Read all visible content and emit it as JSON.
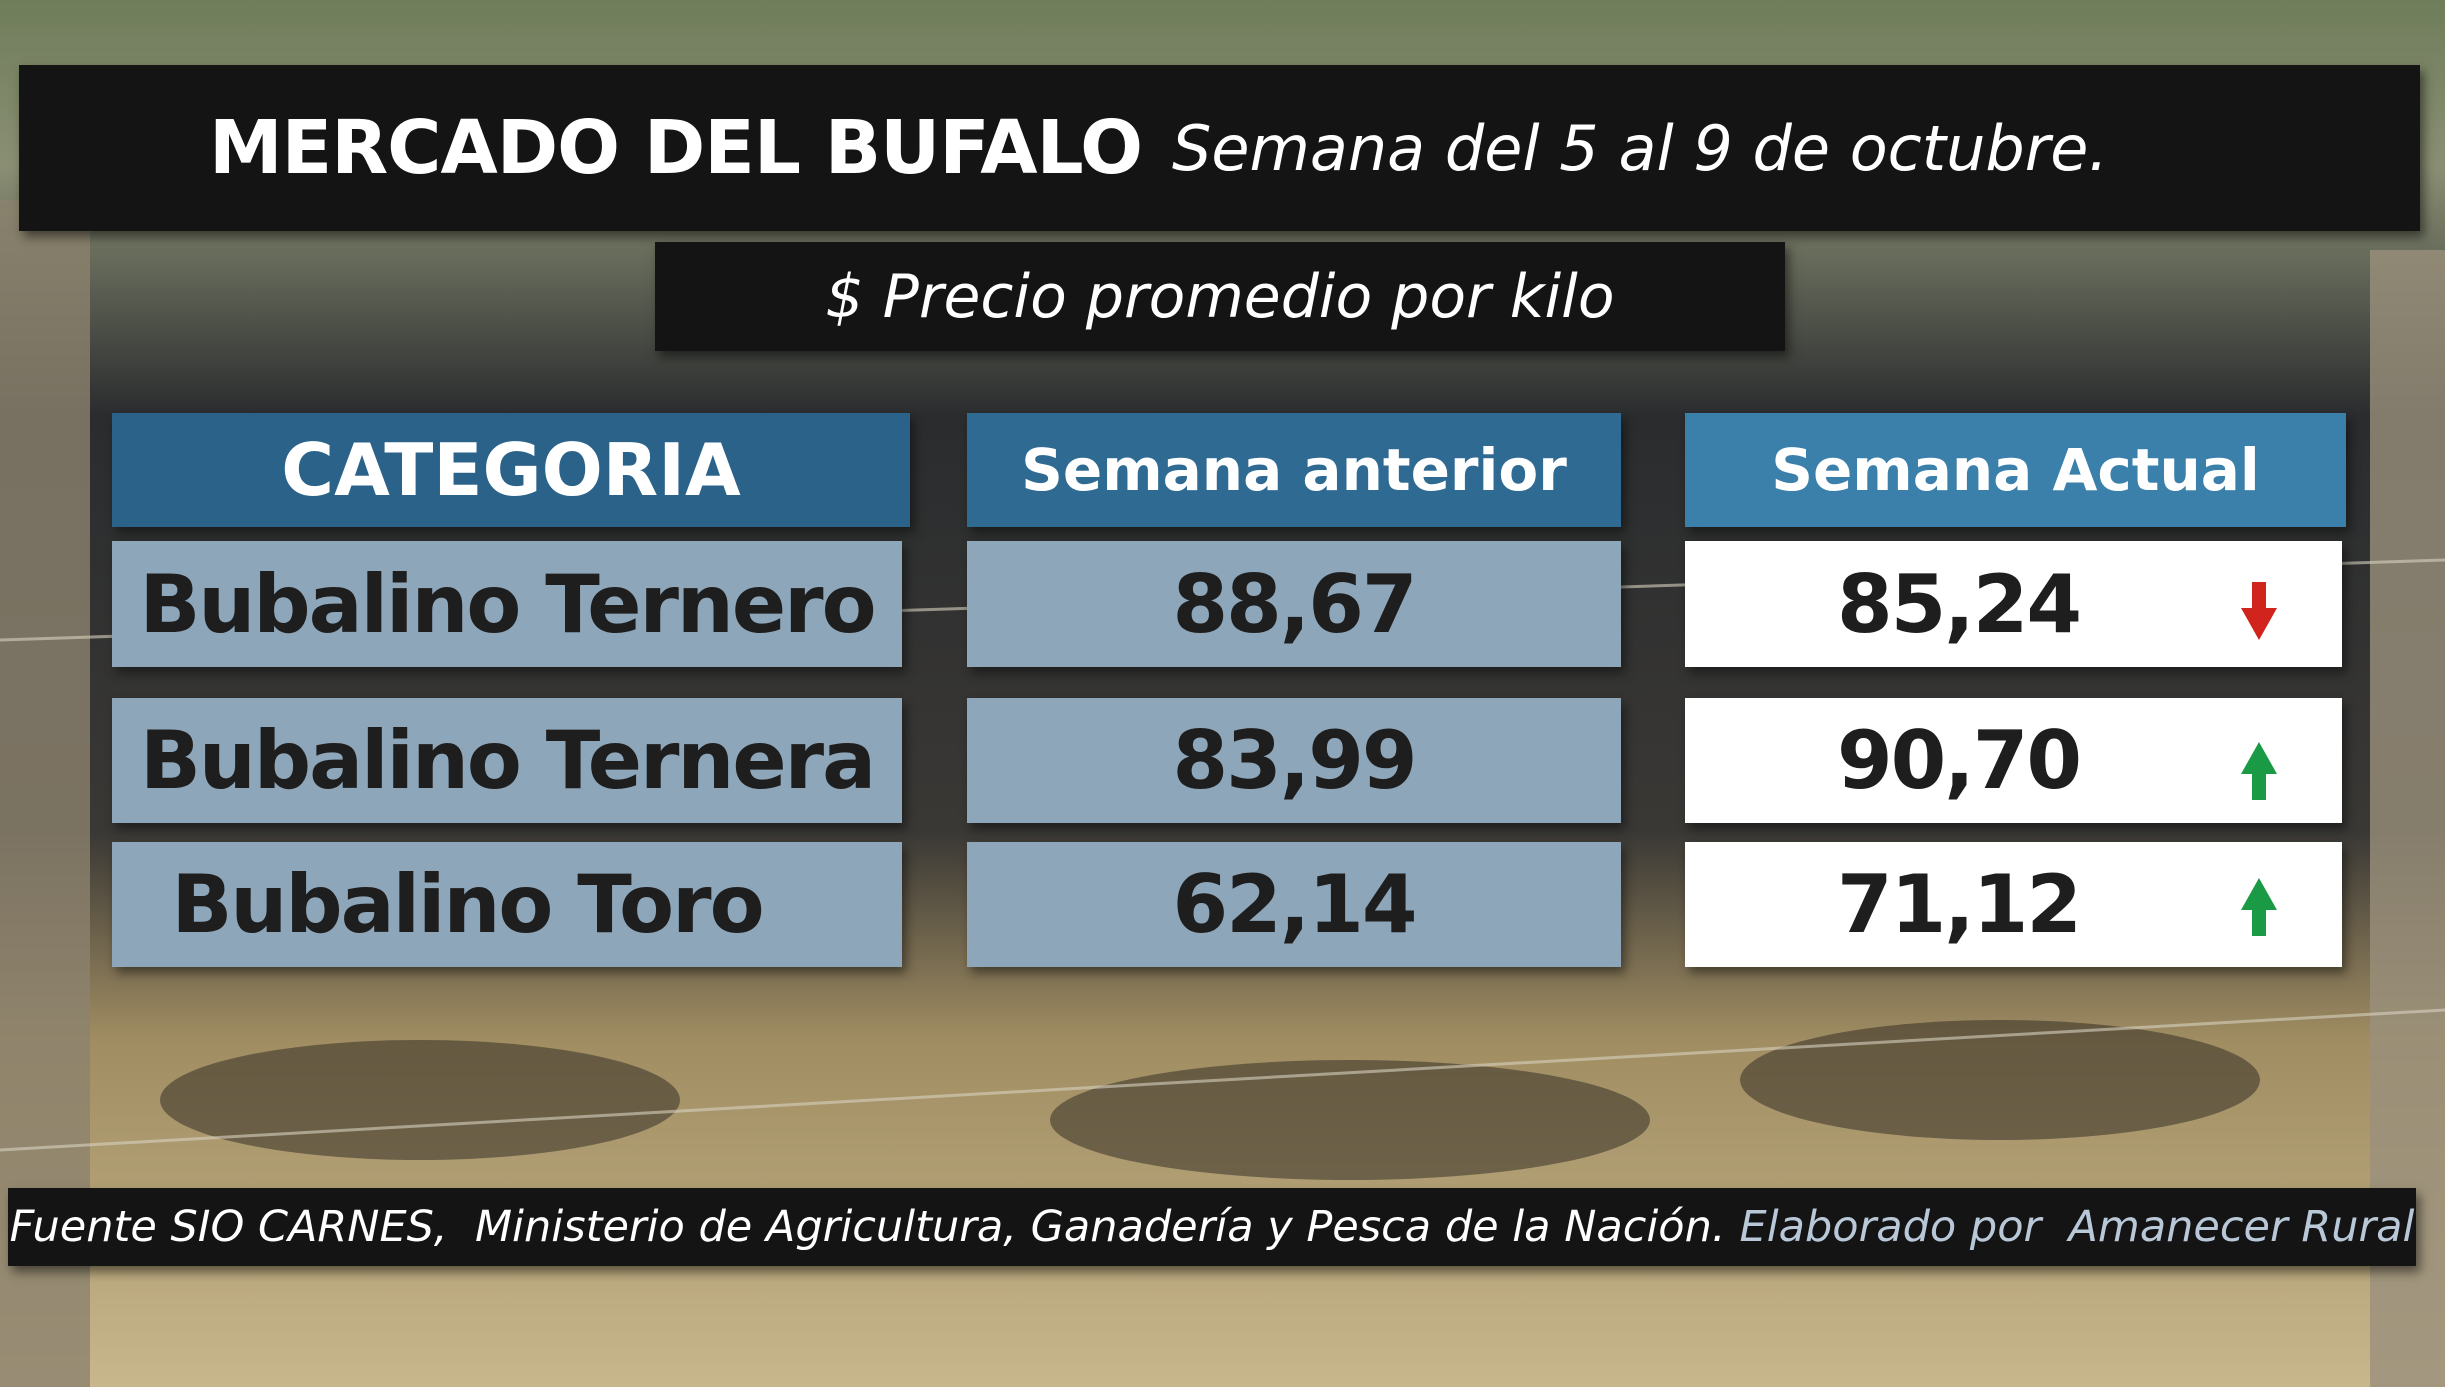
{
  "header": {
    "title": "MERCADO DEL BUFALO",
    "subtitle": "Semana del 5 al 9 de octubre."
  },
  "unit_note": "$ Precio promedio por kilo",
  "table": {
    "columns": [
      "CATEGORIA",
      "Semana anterior",
      "Semana Actual"
    ],
    "rows": [
      [
        "Bubalino Ternero",
        "88,67",
        "85,24"
      ],
      [
        "Bubalino Ternera",
        "83,99",
        "90,70"
      ],
      [
        "Bubalino Toro",
        "62,14",
        "71,12"
      ]
    ]
  },
  "footer": {
    "source": "Fuente SIO CARNES,  Ministerio de Agricultura, Ganadería y Pesca de la Nación.",
    "credit": "Elaborado por  Amanecer Rural"
  }
}
